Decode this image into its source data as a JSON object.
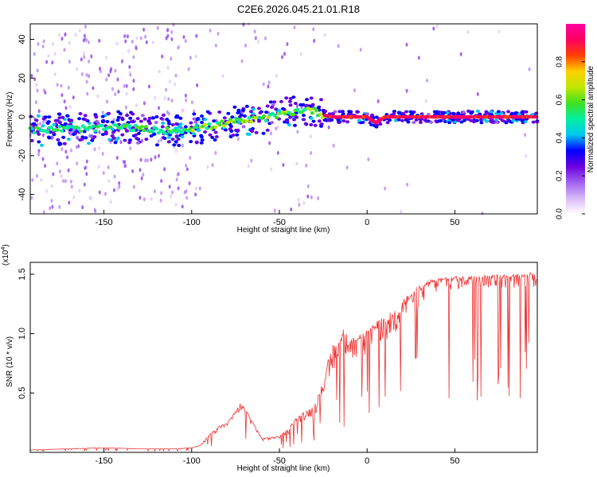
{
  "title": "C2E6.2026.045.21.01.R18",
  "chart_data": [
    {
      "type": "heatmap",
      "xlabel": "Height of straight line (km)",
      "ylabel": "Frequency (Hz)",
      "xlim": [
        -192,
        97
      ],
      "ylim": [
        -50,
        48
      ],
      "xticks": [
        -150,
        -100,
        -50,
        0,
        50
      ],
      "yticks": [
        -40,
        -20,
        0,
        20,
        40
      ],
      "xtick_labels": [
        "-150",
        "-100",
        "-50",
        "0",
        "50"
      ],
      "ytick_labels": [
        "-40",
        "-20",
        "0",
        "20",
        "40"
      ],
      "ridge": {
        "x": [
          -192,
          -170,
          -150,
          -140,
          -130,
          -120,
          -110,
          -100,
          -90,
          -80,
          -70,
          -60,
          -50,
          -40,
          -35,
          -30,
          -25,
          -20,
          -10,
          0,
          5,
          10,
          20,
          50,
          97
        ],
        "y": [
          -7,
          -6,
          -6,
          -5,
          -6,
          -7,
          -7,
          -6,
          -5,
          -3,
          -2,
          -1,
          1,
          3,
          4,
          3,
          1,
          0,
          0,
          0,
          -3,
          0,
          0,
          0,
          0
        ]
      },
      "colorbar": {
        "label": "Normalized spectral amplitude",
        "range": [
          0,
          1
        ],
        "ticks": [
          0.0,
          0.2,
          0.4,
          0.6,
          0.8
        ],
        "tick_labels": [
          "0.0",
          "0.2",
          "0.4",
          "0.6",
          "0.8"
        ],
        "colors": [
          "#ffffff",
          "#d8b8f8",
          "#a060f0",
          "#6a00e0",
          "#0000ff",
          "#00c8f0",
          "#00f0a0",
          "#40e020",
          "#c0e800",
          "#ffd000",
          "#ff4000",
          "#ff0060",
          "#ff00a0"
        ]
      }
    },
    {
      "type": "line",
      "xlabel": "Height of straight line (km)",
      "ylabel": "SNR (10 * v/v)",
      "exponent_label": "(x10",
      "exponent_power": "4",
      "exponent_close": ")",
      "xlim": [
        -192,
        97
      ],
      "ylim": [
        0,
        1.6
      ],
      "xticks": [
        -150,
        -100,
        -50,
        0,
        50
      ],
      "yticks": [
        0.5,
        1.0,
        1.5
      ],
      "xtick_labels": [
        "-150",
        "-100",
        "-50",
        "0",
        "50"
      ],
      "ytick_labels": [
        "0.5",
        "1.0",
        "1.5"
      ],
      "series": [
        {
          "name": "SNR",
          "color": "#ee3333",
          "x": [
            -192,
            -170,
            -150,
            -130,
            -110,
            -100,
            -95,
            -90,
            -85,
            -80,
            -75,
            -72,
            -70,
            -65,
            -60,
            -55,
            -50,
            -45,
            -40,
            -35,
            -30,
            -25,
            -22,
            -20,
            -15,
            -13,
            -10,
            -5,
            0,
            5,
            10,
            15,
            20,
            25,
            30,
            35,
            40,
            50,
            60,
            70,
            80,
            90,
            97
          ],
          "y": [
            0.02,
            0.03,
            0.04,
            0.03,
            0.03,
            0.04,
            0.06,
            0.15,
            0.22,
            0.25,
            0.35,
            0.42,
            0.38,
            0.25,
            0.12,
            0.13,
            0.14,
            0.2,
            0.3,
            0.35,
            0.4,
            0.6,
            0.8,
            0.9,
            0.95,
            1.1,
            0.95,
            1.0,
            1.05,
            1.1,
            1.15,
            1.2,
            1.28,
            1.35,
            1.42,
            1.45,
            1.47,
            1.48,
            1.49,
            1.5,
            1.5,
            1.51,
            1.52
          ],
          "spread_low": [
            0.02,
            0.03,
            0.03,
            0.03,
            0.03,
            0.03,
            0.05,
            0.1,
            0.15,
            0.18,
            0.25,
            0.3,
            0.28,
            0.18,
            0.08,
            0.08,
            0.1,
            0.12,
            0.2,
            0.22,
            0.25,
            0.35,
            0.5,
            0.55,
            0.6,
            0.6,
            0.55,
            0.6,
            0.65,
            0.7,
            0.75,
            0.8,
            0.9,
            1.0,
            1.1,
            1.2,
            1.25,
            1.3,
            1.3,
            1.3,
            1.3,
            1.3,
            1.3
          ]
        }
      ]
    }
  ]
}
